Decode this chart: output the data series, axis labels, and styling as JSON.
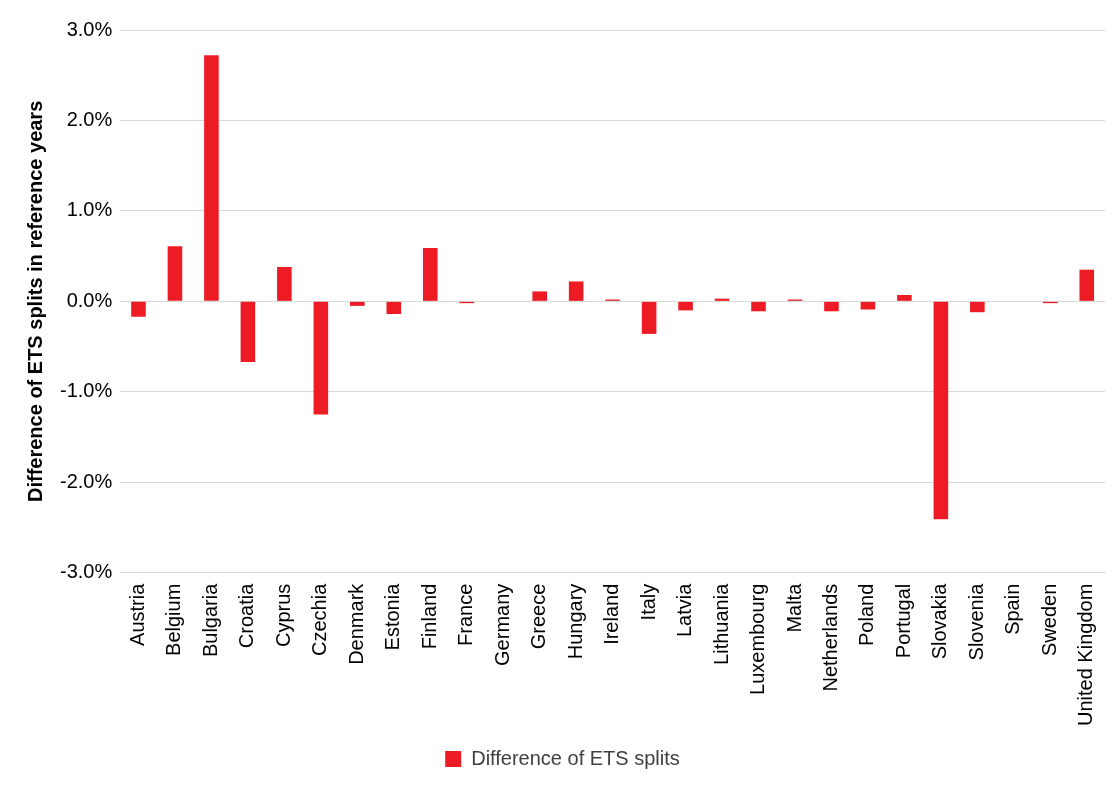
{
  "chart_data": {
    "type": "bar",
    "ylabel": "Difference of ETS splits in reference years",
    "categories": [
      "Austria",
      "Belgium",
      "Bulgaria",
      "Croatia",
      "Cyprus",
      "Czechia",
      "Denmark",
      "Estonia",
      "Finland",
      "France",
      "Germany",
      "Greece",
      "Hungary",
      "Ireland",
      "Italy",
      "Latvia",
      "Lithuania",
      "Luxembourg",
      "Malta",
      "Netherlands",
      "Poland",
      "Portugal",
      "Slovakia",
      "Slovenia",
      "Spain",
      "Sweden",
      "United Kingdom"
    ],
    "series": [
      {
        "name": "Difference of ETS splits",
        "color": "#ed1c24",
        "values": [
          -0.17,
          0.61,
          2.72,
          -0.67,
          0.38,
          -1.25,
          -0.05,
          -0.14,
          0.59,
          -0.02,
          0,
          0.11,
          0.22,
          0.02,
          -0.36,
          -0.1,
          0.03,
          -0.11,
          0.02,
          -0.11,
          -0.09,
          0.07,
          -2.41,
          -0.12,
          0,
          -0.02,
          0.35
        ]
      }
    ],
    "ylim": [
      -3,
      3
    ],
    "yticks": [
      {
        "value": -3,
        "label": "-3.0%"
      },
      {
        "value": -2,
        "label": "-2.0%"
      },
      {
        "value": -1,
        "label": "-1.0%"
      },
      {
        "value": 0,
        "label": "0.0%"
      },
      {
        "value": 1,
        "label": "1.0%"
      },
      {
        "value": 2,
        "label": "2.0%"
      },
      {
        "value": 3,
        "label": "3.0%"
      }
    ],
    "grid": "y",
    "legend": "bottom"
  }
}
